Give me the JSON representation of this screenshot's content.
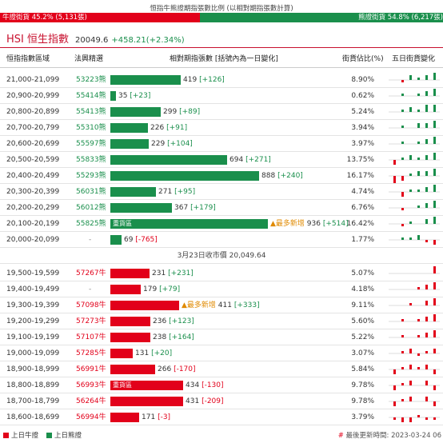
{
  "ratio": {
    "title": "恒指牛熊證期指張數比例 (以相對期指張數計算)",
    "bull_label": "牛證街貨 45.2% (5,131張)",
    "bear_label": "熊證街貨 54.8% (6,217張)",
    "bull_fraction": 0.452,
    "bull_color": "#e2001a",
    "bear_color": "#1a8f4c"
  },
  "index": {
    "name": "HSI 恒生指數",
    "price": "20049.6",
    "change": "+458.21(+2.34%)"
  },
  "headers": {
    "range": "恒指指數區域",
    "code": "法興精選",
    "contracts": "相對期指張數 [括號內為一日變化]",
    "pct": "街貨佔比(%)",
    "spark": "五日街貨變化"
  },
  "labels": {
    "heavy": "重貨區",
    "most_new": "▲最多新增"
  },
  "bear_rows": [
    {
      "range": "21,000-21,099",
      "code": "53223熊",
      "contracts": 419,
      "delta": "[+126]",
      "pct": "8.90%",
      "tag": "",
      "most_new": false,
      "spark": [
        0,
        -1,
        2,
        1,
        2,
        3
      ]
    },
    {
      "range": "20,900-20,999",
      "code": "55414熊",
      "contracts": 35,
      "delta": "[+23]",
      "pct": "0.62%",
      "tag": "",
      "most_new": false,
      "spark": [
        0,
        1,
        0,
        1,
        2,
        3
      ]
    },
    {
      "range": "20,800-20,899",
      "code": "55413熊",
      "contracts": 299,
      "delta": "[+89]",
      "pct": "5.24%",
      "tag": "",
      "most_new": false,
      "spark": [
        0,
        1,
        2,
        1,
        3,
        3
      ]
    },
    {
      "range": "20,700-20,799",
      "code": "55310熊",
      "contracts": 226,
      "delta": "[+91]",
      "pct": "3.94%",
      "tag": "",
      "most_new": false,
      "spark": [
        0,
        1,
        0,
        2,
        2,
        3
      ]
    },
    {
      "range": "20,600-20,699",
      "code": "55597熊",
      "contracts": 229,
      "delta": "[+104]",
      "pct": "3.97%",
      "tag": "",
      "most_new": false,
      "spark": [
        0,
        1,
        0,
        1,
        2,
        3
      ]
    },
    {
      "range": "20,500-20,599",
      "code": "55833熊",
      "contracts": 694,
      "delta": "[+271]",
      "pct": "13.75%",
      "tag": "",
      "most_new": false,
      "spark": [
        -2,
        1,
        2,
        1,
        2,
        3
      ]
    },
    {
      "range": "20,400-20,499",
      "code": "55293熊",
      "contracts": 888,
      "delta": "[+240]",
      "pct": "16.17%",
      "tag": "",
      "most_new": false,
      "spark": [
        -3,
        -2,
        1,
        2,
        2,
        3
      ]
    },
    {
      "range": "20,300-20,399",
      "code": "56031熊",
      "contracts": 271,
      "delta": "[+95]",
      "pct": "4.74%",
      "tag": "",
      "most_new": false,
      "spark": [
        0,
        -2,
        1,
        1,
        2,
        3
      ]
    },
    {
      "range": "20,200-20,299",
      "code": "56012熊",
      "contracts": 367,
      "delta": "[+179]",
      "pct": "6.76%",
      "tag": "",
      "most_new": false,
      "spark": [
        0,
        -1,
        0,
        1,
        2,
        3
      ]
    },
    {
      "range": "20,100-20,199",
      "code": "55825熊",
      "contracts": 936,
      "delta": "[+514]",
      "pct": "16.42%",
      "tag": "heavy",
      "most_new": true,
      "spark": [
        0,
        -1,
        1,
        0,
        2,
        3
      ]
    },
    {
      "range": "20,000-20,099",
      "code": "-",
      "contracts": 69,
      "delta": "[-765]",
      "pct": "1.77%",
      "tag": "",
      "most_new": false,
      "spark": [
        0,
        1,
        1,
        2,
        -1,
        -2
      ]
    }
  ],
  "midline": "3月23日收市價 20,049.64",
  "bull_rows": [
    {
      "range": "19,500-19,599",
      "code": "57267牛",
      "contracts": 231,
      "delta": "[+231]",
      "pct": "5.07%",
      "tag": "",
      "most_new": false,
      "spark": [
        0,
        0,
        0,
        0,
        0,
        3
      ]
    },
    {
      "range": "19,400-19,499",
      "code": "-",
      "contracts": 179,
      "delta": "[+79]",
      "pct": "4.18%",
      "tag": "",
      "most_new": false,
      "spark": [
        0,
        0,
        0,
        1,
        2,
        3
      ]
    },
    {
      "range": "19,300-19,399",
      "code": "57098牛",
      "contracts": 411,
      "delta": "[+333]",
      "pct": "9.11%",
      "tag": "",
      "most_new": true,
      "spark": [
        0,
        0,
        1,
        0,
        2,
        3
      ]
    },
    {
      "range": "19,200-19,299",
      "code": "57273牛",
      "contracts": 236,
      "delta": "[+123]",
      "pct": "5.60%",
      "tag": "",
      "most_new": false,
      "spark": [
        0,
        1,
        0,
        1,
        2,
        3
      ]
    },
    {
      "range": "19,100-19,199",
      "code": "57107牛",
      "contracts": 238,
      "delta": "[+164]",
      "pct": "5.22%",
      "tag": "",
      "most_new": false,
      "spark": [
        0,
        1,
        0,
        1,
        2,
        3
      ]
    },
    {
      "range": "19,000-19,099",
      "code": "57285牛",
      "contracts": 131,
      "delta": "[+20]",
      "pct": "3.07%",
      "tag": "",
      "most_new": false,
      "spark": [
        0,
        1,
        2,
        -1,
        1,
        2
      ]
    },
    {
      "range": "18,900-18,999",
      "code": "56991牛",
      "contracts": 266,
      "delta": "[-170]",
      "pct": "5.84%",
      "tag": "",
      "most_new": false,
      "spark": [
        -2,
        1,
        2,
        1,
        2,
        -2
      ]
    },
    {
      "range": "18,800-18,899",
      "code": "56993牛",
      "contracts": 434,
      "delta": "[-130]",
      "pct": "9.78%",
      "tag": "heavy",
      "most_new": false,
      "spark": [
        -2,
        1,
        2,
        0,
        2,
        -2
      ]
    },
    {
      "range": "18,700-18,799",
      "code": "56264牛",
      "contracts": 431,
      "delta": "[-209]",
      "pct": "9.78%",
      "tag": "",
      "most_new": false,
      "spark": [
        -2,
        1,
        2,
        0,
        2,
        -2
      ]
    },
    {
      "range": "18,600-18,699",
      "code": "56994牛",
      "contracts": 171,
      "delta": "[-3]",
      "pct": "3.79%",
      "tag": "",
      "most_new": false,
      "spark": [
        -1,
        -2,
        -2,
        1,
        -1,
        -1
      ]
    }
  ],
  "legend": {
    "bull": "上日牛證",
    "bear": "上日熊證"
  },
  "updated": {
    "hash": "#",
    "text": "最後更新時間: 2023-03-24 06"
  },
  "max_contracts": 1000
}
